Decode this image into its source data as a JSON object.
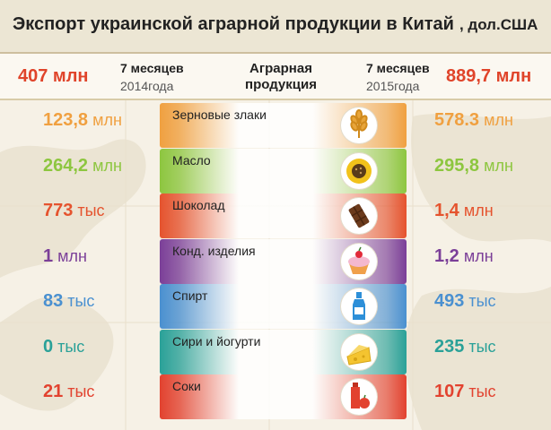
{
  "title": {
    "text": "Экспорт украинской аграрной продукции в Китай",
    "unit": ", дол.США"
  },
  "header": {
    "total_left": "407 млн",
    "total_right": "889,7 млн",
    "left_period_title": "7 месяцев",
    "left_period_year": "2014года",
    "right_period_title": "7 месяцев",
    "right_period_year": "2015года",
    "category_heading_line1": "Аграрная",
    "category_heading_line2": "продукция"
  },
  "rows": [
    {
      "label": "Зерновые злаки",
      "left_num": "123,8",
      "left_unit": "млн",
      "right_num": "578.3",
      "right_unit": "млн",
      "color": "#f0a040",
      "icon": "wheat-icon"
    },
    {
      "label": "Масло",
      "left_num": "264,2",
      "left_unit": "млн",
      "right_num": "295,8",
      "right_unit": "млн",
      "color": "#8dc63f",
      "icon": "sunflower-icon"
    },
    {
      "label": "Шоколад",
      "left_num": "773",
      "left_unit": "тыс",
      "right_num": "1,4",
      "right_unit": "млн",
      "color": "#e5532e",
      "icon": "chocolate-icon"
    },
    {
      "label": "Конд. изделия",
      "left_num": "1",
      "left_unit": "млн",
      "right_num": "1,2",
      "right_unit": "млн",
      "color": "#7b3f98",
      "icon": "cupcake-icon"
    },
    {
      "label": "Спирт",
      "left_num": "83",
      "left_unit": "тыс",
      "right_num": "493",
      "right_unit": "тыс",
      "color": "#4a90d0",
      "icon": "bottle-icon"
    },
    {
      "label": "Сири и  йогурти",
      "left_num": "0",
      "left_unit": "тыс",
      "right_num": "235",
      "right_unit": "тыс",
      "color": "#2aa198",
      "icon": "cheese-icon"
    },
    {
      "label": "Соки",
      "left_num": "21",
      "left_unit": "тыс",
      "right_num": "107",
      "right_unit": "тыс",
      "color": "#e2422f",
      "icon": "juice-icon"
    }
  ]
}
